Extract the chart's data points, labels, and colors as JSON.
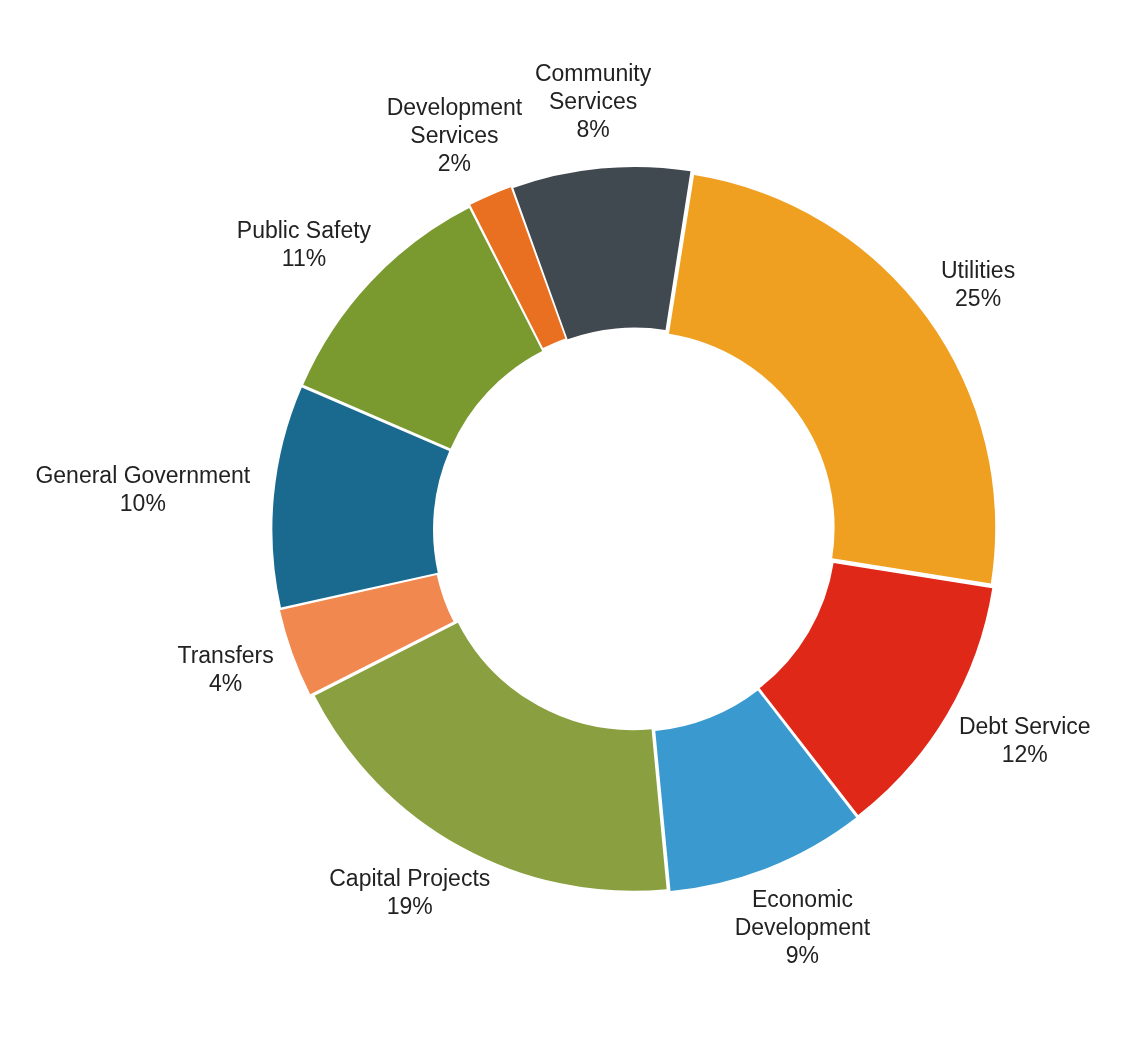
{
  "chart_data": {
    "type": "donut",
    "categories": [
      "Utilities",
      "Debt Service",
      "Economic Development",
      "Capital Projects",
      "Transfers",
      "General Government",
      "Public Safety",
      "Development Services",
      "Community Services"
    ],
    "values": [
      25,
      12,
      9,
      19,
      4,
      10,
      11,
      2,
      8
    ],
    "colors": [
      "#f0a020",
      "#e02818",
      "#3a9ad0",
      "#8aa040",
      "#f08850",
      "#1a6a90",
      "#7a9a30",
      "#e87020",
      "#404850"
    ],
    "value_labels": [
      "25%",
      "12%",
      "9%",
      "19%",
      "4%",
      "10%",
      "11%",
      "2%",
      "8%"
    ]
  }
}
